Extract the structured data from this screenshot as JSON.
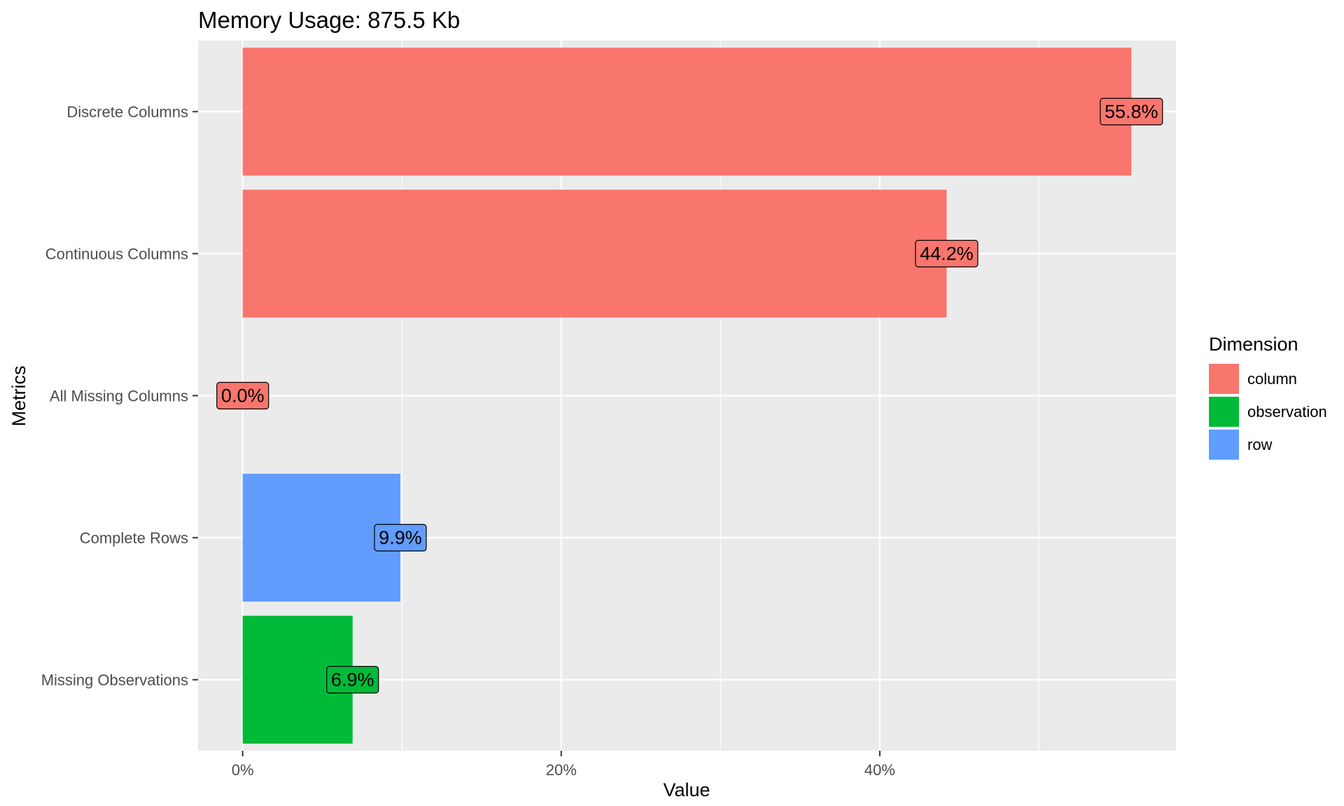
{
  "chart_data": {
    "type": "bar",
    "orientation": "horizontal",
    "title": "Memory Usage: 875.5 Kb",
    "xlabel": "Value",
    "ylabel": "Metrics",
    "xlim": [
      -2.8,
      58.6
    ],
    "x_ticks": [
      {
        "value": 0,
        "label": "0%"
      },
      {
        "value": 20,
        "label": "20%"
      },
      {
        "value": 40,
        "label": "40%"
      }
    ],
    "x_minor_ticks": [
      10,
      30,
      50
    ],
    "grid": true,
    "background": "#ebebeb",
    "categories": [
      "Discrete Columns",
      "Continuous Columns",
      "All Missing Columns",
      "Complete Rows",
      "Missing Observations"
    ],
    "bars": [
      {
        "category": "Discrete Columns",
        "value": 55.8,
        "label": "55.8%",
        "dimension": "column"
      },
      {
        "category": "Continuous Columns",
        "value": 44.2,
        "label": "44.2%",
        "dimension": "column"
      },
      {
        "category": "All Missing Columns",
        "value": 0.0,
        "label": "0.0%",
        "dimension": "column"
      },
      {
        "category": "Complete Rows",
        "value": 9.9,
        "label": "9.9%",
        "dimension": "row"
      },
      {
        "category": "Missing Observations",
        "value": 6.9,
        "label": "6.9%",
        "dimension": "observation"
      }
    ],
    "legend": {
      "title": "Dimension",
      "placement": "right",
      "items": [
        {
          "name": "column",
          "color": "#f8766d"
        },
        {
          "name": "observation",
          "color": "#00ba38"
        },
        {
          "name": "row",
          "color": "#619cff"
        }
      ]
    }
  }
}
